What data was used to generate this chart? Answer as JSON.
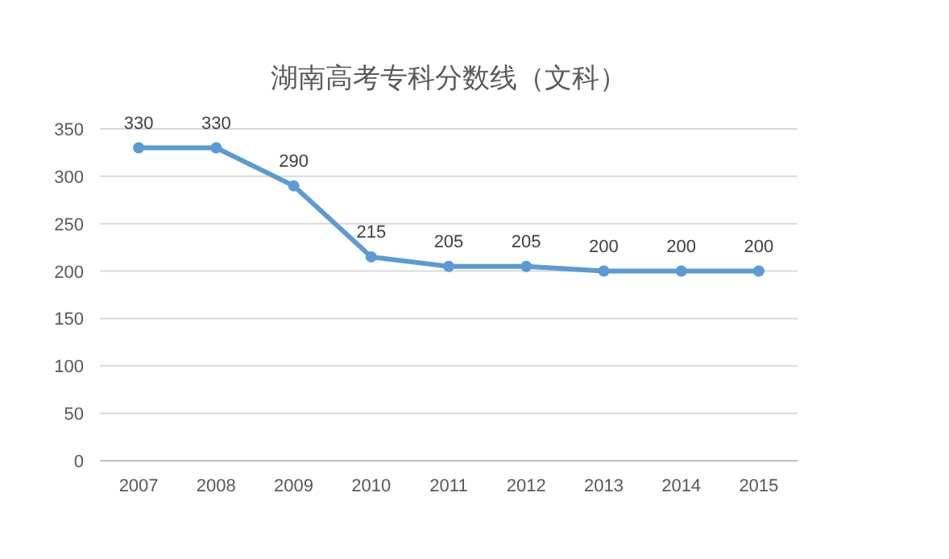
{
  "chart_data": {
    "type": "line",
    "title": "湖南高考专科分数线（文科）",
    "categories": [
      "2007",
      "2008",
      "2009",
      "2010",
      "2011",
      "2012",
      "2013",
      "2014",
      "2015"
    ],
    "values": [
      330,
      330,
      290,
      215,
      205,
      205,
      200,
      200,
      200
    ],
    "color": "#5b9bd5",
    "ylim": [
      0,
      350
    ],
    "yticks": [
      0,
      50,
      100,
      150,
      200,
      250,
      300,
      350
    ],
    "grid": "y",
    "data_labels": true,
    "marker": "circle",
    "line_style": "solid"
  }
}
